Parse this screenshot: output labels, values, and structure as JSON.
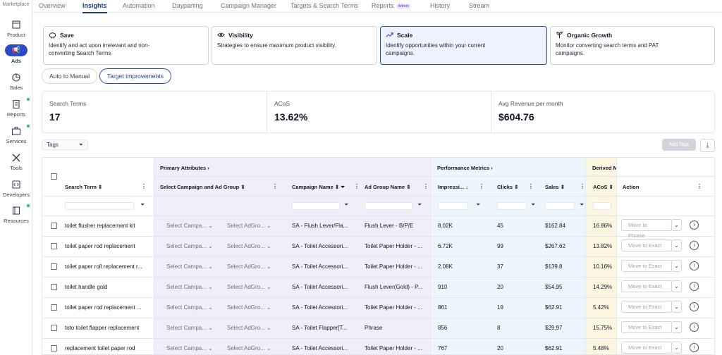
{
  "sidebar": {
    "brand": "Marketplace",
    "items": [
      {
        "label": "Product"
      },
      {
        "label": "Ads"
      },
      {
        "label": "Sales"
      },
      {
        "label": "Reports"
      },
      {
        "label": "Services"
      },
      {
        "label": "Tools"
      },
      {
        "label": "Developers"
      },
      {
        "label": "Resources"
      }
    ]
  },
  "topnav": {
    "tabs": [
      "Overview",
      "Insights",
      "Automation",
      "Dayparting",
      "Campaign Manager",
      "Targets & Search Terms",
      "Reports",
      "History",
      "Stream"
    ],
    "admin_badge": "Admin"
  },
  "cards": [
    {
      "title": "Save",
      "desc1": "Identify and act upon irrelevant and non-",
      "desc2": "converting Search Terms"
    },
    {
      "title": "Visibility",
      "desc1": "Strategies to ensure maximum product visibility.",
      "desc2": ""
    },
    {
      "title": "Scale",
      "desc1": "Identify opportunities within your current",
      "desc2": "campaigns."
    },
    {
      "title": "Organic Growth",
      "desc1": "Monitor converting search terms and PAT",
      "desc2": "campaigns."
    }
  ],
  "subtabs": [
    "Auto to Manual",
    "Target Improvements"
  ],
  "stats": [
    {
      "label": "Search Terms",
      "value": "17"
    },
    {
      "label": "ACoS",
      "value": "13.62%"
    },
    {
      "label": "Avg Revenue per month",
      "value": "$604.76"
    }
  ],
  "toolbar": {
    "tags_label": "Tags",
    "add_tags_label": "Add Tags"
  },
  "table": {
    "groups": {
      "primary": "Primary Attributes",
      "performance": "Performance Metrics",
      "derived": "Derived M"
    },
    "columns": {
      "search_term": "Search Term",
      "select_campaign": "Select Campaign and Ad Group",
      "campaign_name": "Campaign Name",
      "ad_group_name": "Ad Group Name",
      "impressions": "Impressi...",
      "clicks": "Clicks",
      "sales": "Sales",
      "acos": "ACoS",
      "action": "Action"
    },
    "select_campaign_placeholder": "Select Campa...",
    "select_adgroup_placeholder": "Select AdGro...",
    "rows": [
      {
        "term": "toilet flusher replacement kit",
        "campaign": "SA - Flush Lever/Fla...",
        "adgroup": "Flush Lever - B/P/E",
        "impressions": "8.02K",
        "clicks": "45",
        "sales": "$162.84",
        "acos": "16.86%",
        "action": "Move to Phrase"
      },
      {
        "term": "toilet paper rod replacement",
        "campaign": "SA - Toilet Accessori...",
        "adgroup": "Toilet Paper Holder - ...",
        "impressions": "6.72K",
        "clicks": "99",
        "sales": "$267.62",
        "acos": "13.82%",
        "action": "Move to Exact"
      },
      {
        "term": "toilet paper roll replacement r...",
        "campaign": "SA - Toilet Accessori...",
        "adgroup": "Toilet Paper Holder - ...",
        "impressions": "2.08K",
        "clicks": "37",
        "sales": "$139.8",
        "acos": "10.16%",
        "action": "Move to Exact"
      },
      {
        "term": "toilet handle gold",
        "campaign": "SA - Toilet Accessori...",
        "adgroup": "Flush Lever(Gold) - P...",
        "impressions": "910",
        "clicks": "20",
        "sales": "$54.95",
        "acos": "14.29%",
        "action": "Move to Exact"
      },
      {
        "term": "toilet paper rod replacement ...",
        "campaign": "SA - Toilet Accessori...",
        "adgroup": "Toilet Paper Holder - ...",
        "impressions": "861",
        "clicks": "19",
        "sales": "$62.91",
        "acos": "5.42%",
        "action": "Move to Exact"
      },
      {
        "term": "toto toilet flapper replacement",
        "campaign": "SA - Toilet Flapper[T...",
        "adgroup": "Phrase",
        "impressions": "856",
        "clicks": "8",
        "sales": "$29.97",
        "acos": "15.75%",
        "action": "Move to Exact"
      },
      {
        "term": "replacement toilet paper rod",
        "campaign": "SA - Toilet Accessori...",
        "adgroup": "Toilet Paper Holder - ...",
        "impressions": "767",
        "clicks": "20",
        "sales": "$62.91",
        "acos": "5.48%",
        "action": "Move to Exact"
      }
    ]
  },
  "colors": {
    "accent": "#2b4cc6",
    "primary_bg": "#f1eefb",
    "perf_bg": "#edf5fd",
    "derived_bg": "#fdf7e2"
  }
}
